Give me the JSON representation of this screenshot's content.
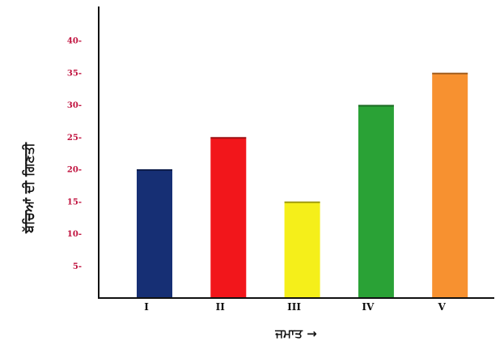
{
  "chart_data": {
    "type": "bar",
    "categories": [
      "I",
      "II",
      "III",
      "IV",
      "V"
    ],
    "values": [
      20,
      25,
      15,
      30,
      35
    ],
    "bar_colors": [
      "#162f74",
      "#f2161b",
      "#f5ef1a",
      "#2aa236",
      "#f79130"
    ],
    "title": "",
    "xlabel": "ਜਮਾਤ →",
    "ylabel": "ਬੱਚਿਆਂ ਦੀ ਗਿਣਤੀ",
    "ylim": [
      0,
      45
    ],
    "yticks": [
      5,
      10,
      15,
      20,
      25,
      30,
      35,
      40
    ],
    "ytick_suffix": "-",
    "ytick_color": "#c0123e",
    "axis_color": "#111111",
    "grid": false,
    "legend": false
  }
}
